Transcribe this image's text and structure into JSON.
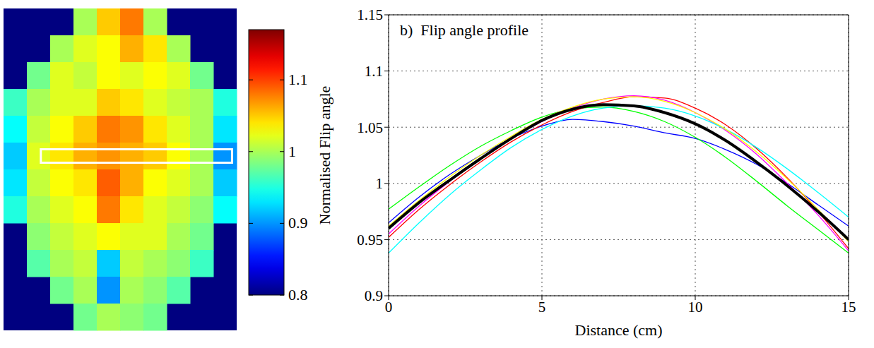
{
  "chart_data": [
    {
      "type": "heatmap",
      "cells": [
        [
          null,
          null,
          null,
          1.0,
          1.05,
          1.08,
          1.0,
          null,
          null,
          null
        ],
        [
          null,
          null,
          1.0,
          1.02,
          1.03,
          1.06,
          1.04,
          1.0,
          null,
          null
        ],
        [
          null,
          0.98,
          1.02,
          1.01,
          1.03,
          1.02,
          1.03,
          1.02,
          0.98,
          null
        ],
        [
          0.96,
          1.0,
          1.02,
          1.02,
          1.05,
          1.04,
          1.02,
          1.01,
          1.0,
          0.95
        ],
        [
          0.94,
          1.01,
          1.03,
          1.05,
          1.08,
          1.07,
          1.04,
          1.02,
          1.0,
          0.93
        ],
        [
          0.92,
          1.02,
          1.04,
          1.06,
          1.07,
          1.06,
          1.05,
          1.03,
          1.0,
          0.9
        ],
        [
          0.93,
          1.01,
          1.03,
          1.04,
          1.09,
          1.06,
          1.03,
          1.02,
          1.0,
          0.92
        ],
        [
          0.95,
          1.0,
          1.02,
          1.03,
          1.08,
          1.04,
          1.02,
          1.01,
          0.99,
          0.94
        ],
        [
          null,
          0.99,
          1.01,
          1.02,
          1.03,
          1.02,
          1.02,
          1.0,
          0.98,
          null
        ],
        [
          null,
          0.97,
          1.0,
          1.01,
          0.92,
          1.01,
          1.0,
          0.99,
          0.96,
          null
        ],
        [
          null,
          null,
          0.98,
          1.0,
          0.9,
          1.0,
          0.99,
          0.97,
          null,
          null
        ],
        [
          null,
          null,
          null,
          0.98,
          1.0,
          0.99,
          0.98,
          null,
          null,
          null
        ]
      ],
      "colorbar_range": [
        0.8,
        1.17
      ],
      "colorbar_ticks": [
        0.8,
        0.9,
        1,
        1.1
      ]
    },
    {
      "type": "line",
      "title": "b)  Flip angle profile",
      "x_label": "Distance (cm)",
      "y_label": "Normalised Flip angle",
      "x": [
        0,
        1,
        2,
        3,
        4,
        5,
        6,
        7,
        8,
        9,
        10,
        11,
        12,
        13,
        14,
        15
      ],
      "xlim": [
        0,
        15
      ],
      "xticks": [
        0,
        5,
        10,
        15
      ],
      "ylim": [
        0.9,
        1.15
      ],
      "yticks": [
        0.9,
        0.95,
        1,
        1.05,
        1.1,
        1.15
      ],
      "grid": true,
      "series": [
        {
          "color": "#0000ff",
          "values": [
            0.965,
            0.988,
            1.008,
            1.025,
            1.04,
            1.051,
            1.057,
            1.055,
            1.051,
            1.045,
            1.04,
            1.03,
            1.017,
            1.0,
            0.981,
            0.962
          ]
        },
        {
          "color": "#00ff00",
          "values": [
            0.977,
            0.997,
            1.016,
            1.033,
            1.047,
            1.059,
            1.066,
            1.068,
            1.064,
            1.055,
            1.041,
            1.023,
            1.002,
            0.98,
            0.959,
            0.938
          ]
        },
        {
          "color": "#ff0000",
          "values": [
            0.952,
            0.977,
            0.999,
            1.019,
            1.037,
            1.052,
            1.064,
            1.072,
            1.077,
            1.076,
            1.067,
            1.052,
            1.031,
            1.005,
            0.975,
            0.942
          ]
        },
        {
          "color": "#ff00ff",
          "values": [
            0.955,
            0.98,
            1.002,
            1.022,
            1.04,
            1.055,
            1.067,
            1.075,
            1.078,
            1.074,
            1.063,
            1.047,
            1.026,
            1.0,
            0.972,
            0.94
          ]
        },
        {
          "color": "#00ffff",
          "values": [
            0.938,
            0.965,
            0.99,
            1.012,
            1.032,
            1.048,
            1.06,
            1.067,
            1.069,
            1.067,
            1.06,
            1.048,
            1.032,
            1.013,
            0.992,
            0.97
          ]
        },
        {
          "color": "#ffff00",
          "values": [
            0.962,
            0.985,
            1.006,
            1.025,
            1.042,
            1.057,
            1.068,
            1.075,
            1.077,
            1.073,
            1.063,
            1.048,
            1.028,
            1.004,
            0.977,
            0.948
          ]
        },
        {
          "color": "#000000",
          "values": [
            0.96,
            0.983,
            1.003,
            1.022,
            1.04,
            1.056,
            1.066,
            1.07,
            1.069,
            1.063,
            1.053,
            1.038,
            1.019,
            0.998,
            0.975,
            0.95
          ]
        }
      ]
    }
  ]
}
